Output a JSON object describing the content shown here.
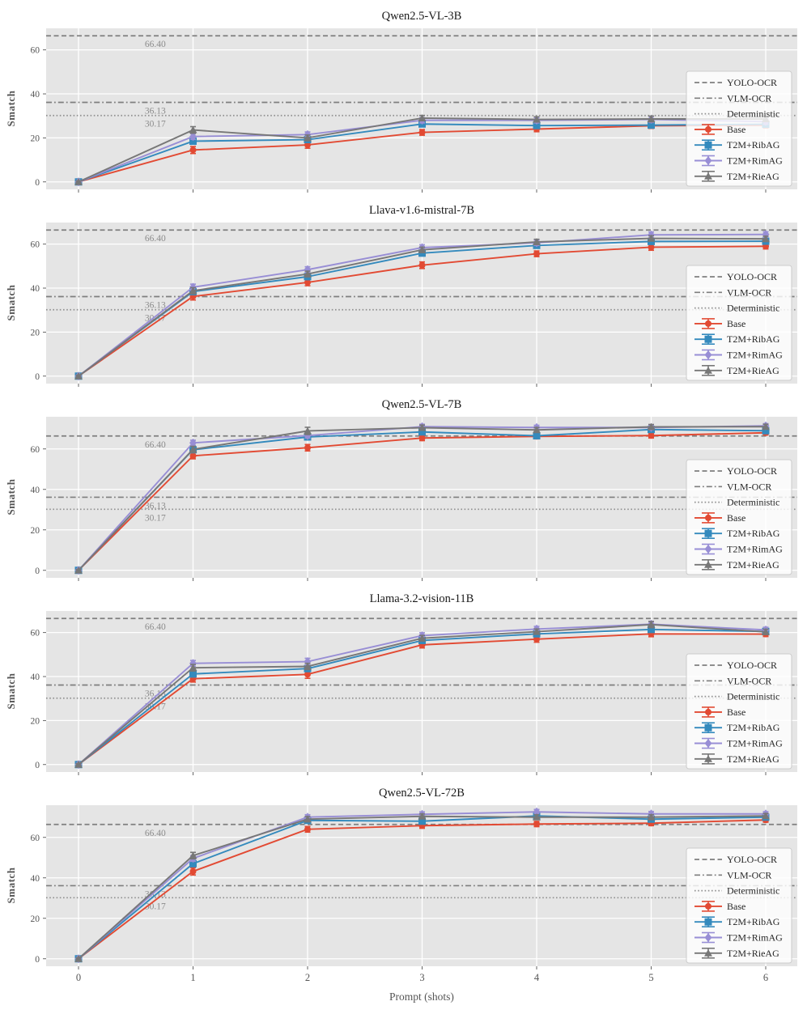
{
  "figure": {
    "ylabel": "Smatch",
    "xlabel": "Prompt (shots)",
    "x_ticks": [
      "0",
      "1",
      "2",
      "3",
      "4",
      "5",
      "6"
    ],
    "y_ticks": [
      0,
      20,
      40,
      60
    ],
    "colors": {
      "base": "#E24A33",
      "ribag": "#348ABD",
      "rimag": "#988ED5",
      "rieag": "#777777",
      "axes_bg": "#E5E5E5",
      "grid": "#FFFFFF",
      "tick_label": "#555555",
      "ref_line": "#7f7f7f",
      "ref_dotted": "#909090",
      "annotation": "#8c8c8c",
      "legend_bg": "rgba(255,255,255,0.8)",
      "legend_border": "#cccccc",
      "legend_text": "#262626",
      "title_text": "#1a1a1a"
    },
    "ref_lines": [
      {
        "label": "YOLO-OCR",
        "value": 66.4,
        "annotation": "66.40",
        "style": "dashed"
      },
      {
        "label": "VLM-OCR",
        "value": 36.13,
        "annotation": "36.13",
        "style": "dashdot"
      },
      {
        "label": "Deterministic",
        "value": 30.17,
        "annotation": "30.17",
        "style": "dotted"
      }
    ],
    "legend_position": "lower right"
  },
  "chart_data": [
    {
      "type": "line",
      "title": "Qwen2.5-VL-3B",
      "x": [
        0,
        1,
        2,
        3,
        4,
        5,
        6
      ],
      "ylim": [
        -3.4,
        69.8
      ],
      "show_x_labels": false,
      "series": [
        {
          "name": "Base",
          "color_key": "base",
          "marker": "circle",
          "values": [
            0,
            14.5,
            16.8,
            22.5,
            24.0,
            25.5,
            25.8
          ],
          "err": [
            0.4,
            1.6,
            1.5,
            1.3,
            1.2,
            1.2,
            1.2
          ]
        },
        {
          "name": "T2M+RibAG",
          "color_key": "ribag",
          "marker": "square",
          "values": [
            0,
            18.5,
            19.2,
            26.3,
            25.6,
            25.8,
            26.2
          ],
          "err": [
            0.4,
            1.4,
            1.2,
            1.2,
            1.1,
            1.1,
            1.1
          ]
        },
        {
          "name": "T2M+RimAG",
          "color_key": "rimag",
          "marker": "diamond",
          "values": [
            0,
            20.6,
            21.5,
            28.0,
            28.0,
            28.4,
            27.4
          ],
          "err": [
            0.4,
            1.3,
            1.2,
            1.2,
            1.2,
            1.4,
            1.2
          ]
        },
        {
          "name": "T2M+RieAG",
          "color_key": "rieag",
          "marker": "triangle",
          "values": [
            0,
            23.6,
            20.0,
            29.0,
            28.4,
            28.6,
            28.6
          ],
          "err": [
            0.4,
            1.5,
            1.3,
            1.2,
            1.2,
            1.3,
            1.2
          ]
        }
      ]
    },
    {
      "type": "line",
      "title": "Llava-v1.6-mistral-7B",
      "x": [
        0,
        1,
        2,
        3,
        4,
        5,
        6
      ],
      "ylim": [
        -3.4,
        69.8
      ],
      "show_x_labels": false,
      "series": [
        {
          "name": "Base",
          "color_key": "base",
          "marker": "circle",
          "values": [
            0,
            36.2,
            42.6,
            50.4,
            55.6,
            58.6,
            59.0
          ],
          "err": [
            0.4,
            1.6,
            1.5,
            1.5,
            1.3,
            1.4,
            1.2
          ]
        },
        {
          "name": "T2M+RibAG",
          "color_key": "ribag",
          "marker": "square",
          "values": [
            0,
            38.4,
            45.2,
            55.9,
            59.4,
            61.2,
            61.3
          ],
          "err": [
            0.4,
            1.4,
            1.3,
            1.3,
            1.2,
            1.2,
            1.1
          ]
        },
        {
          "name": "T2M+RimAG",
          "color_key": "rimag",
          "marker": "diamond",
          "values": [
            0,
            40.4,
            48.4,
            58.4,
            60.6,
            64.2,
            64.4
          ],
          "err": [
            0.4,
            1.4,
            1.3,
            1.3,
            1.2,
            1.3,
            1.2
          ]
        },
        {
          "name": "T2M+RieAG",
          "color_key": "rieag",
          "marker": "triangle",
          "values": [
            0,
            38.8,
            46.4,
            57.4,
            61.0,
            62.6,
            62.4
          ],
          "err": [
            0.4,
            1.4,
            1.3,
            1.2,
            1.2,
            1.2,
            1.2
          ]
        }
      ]
    },
    {
      "type": "line",
      "title": "Qwen2.5-VL-7B",
      "x": [
        0,
        1,
        2,
        3,
        4,
        5,
        6
      ],
      "ylim": [
        -3.7,
        75.9
      ],
      "show_x_labels": false,
      "series": [
        {
          "name": "Base",
          "color_key": "base",
          "marker": "circle",
          "values": [
            0,
            56.6,
            60.6,
            65.4,
            66.2,
            66.6,
            68.0
          ],
          "err": [
            0.4,
            1.5,
            1.6,
            1.3,
            1.2,
            1.2,
            1.1
          ]
        },
        {
          "name": "T2M+RibAG",
          "color_key": "ribag",
          "marker": "square",
          "values": [
            0,
            59.6,
            65.9,
            68.4,
            66.5,
            69.6,
            69.0
          ],
          "err": [
            0.4,
            1.4,
            1.3,
            1.2,
            1.2,
            1.1,
            1.1
          ]
        },
        {
          "name": "T2M+RimAG",
          "color_key": "rimag",
          "marker": "diamond",
          "values": [
            0,
            63.0,
            66.6,
            71.0,
            70.6,
            70.6,
            71.4
          ],
          "err": [
            0.4,
            1.3,
            1.2,
            1.2,
            1.1,
            1.1,
            1.1
          ]
        },
        {
          "name": "T2M+RieAG",
          "color_key": "rieag",
          "marker": "triangle",
          "values": [
            0,
            59.8,
            68.9,
            70.5,
            69.4,
            70.9,
            71.0
          ],
          "err": [
            0.4,
            1.5,
            1.8,
            1.3,
            1.2,
            1.2,
            1.2
          ]
        }
      ]
    },
    {
      "type": "line",
      "title": "Llama-3.2-vision-11B",
      "x": [
        0,
        1,
        2,
        3,
        4,
        5,
        6
      ],
      "ylim": [
        -3.4,
        69.8
      ],
      "show_x_labels": false,
      "series": [
        {
          "name": "Base",
          "color_key": "base",
          "marker": "circle",
          "values": [
            0,
            39.0,
            41.0,
            54.4,
            57.0,
            59.4,
            59.3
          ],
          "err": [
            0.4,
            1.5,
            1.8,
            1.4,
            1.4,
            1.3,
            1.1
          ]
        },
        {
          "name": "T2M+RibAG",
          "color_key": "ribag",
          "marker": "square",
          "values": [
            0,
            41.2,
            43.6,
            56.4,
            59.4,
            61.4,
            60.5
          ],
          "err": [
            0.4,
            1.4,
            1.3,
            1.3,
            1.2,
            1.2,
            1.1
          ]
        },
        {
          "name": "T2M+RimAG",
          "color_key": "rimag",
          "marker": "diamond",
          "values": [
            0,
            46.0,
            46.8,
            58.6,
            61.6,
            63.8,
            61.2
          ],
          "err": [
            0.4,
            1.3,
            1.5,
            1.3,
            1.2,
            1.3,
            1.2
          ]
        },
        {
          "name": "T2M+RieAG",
          "color_key": "rieag",
          "marker": "triangle",
          "values": [
            0,
            44.0,
            44.6,
            57.4,
            60.4,
            63.6,
            60.3
          ],
          "err": [
            0.4,
            1.5,
            1.4,
            1.3,
            1.2,
            1.4,
            1.2
          ]
        }
      ]
    },
    {
      "type": "line",
      "title": "Qwen2.5-VL-72B",
      "x": [
        0,
        1,
        2,
        3,
        4,
        5,
        6
      ],
      "ylim": [
        -3.7,
        75.9
      ],
      "show_x_labels": true,
      "series": [
        {
          "name": "Base",
          "color_key": "base",
          "marker": "circle",
          "values": [
            0,
            43.2,
            64.0,
            65.8,
            66.6,
            67.0,
            68.6
          ],
          "err": [
            0.4,
            1.8,
            1.4,
            1.3,
            1.3,
            1.2,
            1.1
          ]
        },
        {
          "name": "T2M+RibAG",
          "color_key": "ribag",
          "marker": "square",
          "values": [
            0,
            47.0,
            68.4,
            68.0,
            70.6,
            69.0,
            70.0
          ],
          "err": [
            0.4,
            1.5,
            1.3,
            1.3,
            1.2,
            1.2,
            1.1
          ]
        },
        {
          "name": "T2M+RimAG",
          "color_key": "rimag",
          "marker": "diamond",
          "values": [
            0,
            49.6,
            70.0,
            71.4,
            72.6,
            71.6,
            71.6
          ],
          "err": [
            0.4,
            1.4,
            1.2,
            1.2,
            1.2,
            1.2,
            1.1
          ]
        },
        {
          "name": "T2M+RieAG",
          "color_key": "rieag",
          "marker": "triangle",
          "values": [
            0,
            51.0,
            69.0,
            70.4,
            70.0,
            70.0,
            70.6
          ],
          "err": [
            0.4,
            1.6,
            1.3,
            1.2,
            1.2,
            1.2,
            1.2
          ]
        }
      ]
    }
  ]
}
